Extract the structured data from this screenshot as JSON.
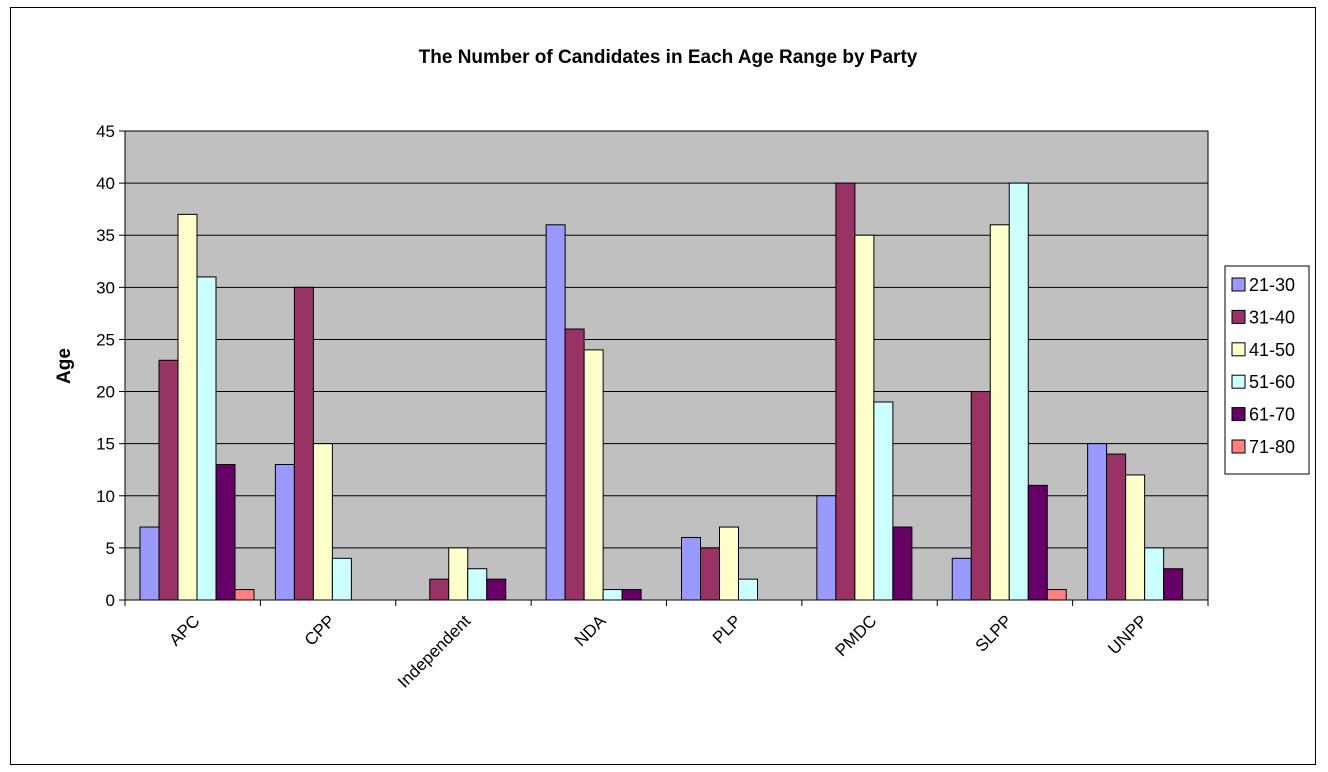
{
  "chart_data": {
    "type": "bar",
    "title": "The Number of Candidates in Each Age Range by Party",
    "xlabel": "",
    "ylabel": "Age",
    "ylim": [
      0,
      45
    ],
    "yticks": [
      0,
      5,
      10,
      15,
      20,
      25,
      30,
      35,
      40,
      45
    ],
    "grid": true,
    "legend_position": "right",
    "categories": [
      "APC",
      "CPP",
      "Independent",
      "NDA",
      "PLP",
      "PMDC",
      "SLPP",
      "UNPP"
    ],
    "series": [
      {
        "name": "21-30",
        "color": "#9999ff",
        "values": [
          7,
          13,
          0,
          36,
          6,
          10,
          4,
          15
        ]
      },
      {
        "name": "31-40",
        "color": "#993366",
        "values": [
          23,
          30,
          2,
          26,
          5,
          40,
          20,
          14
        ]
      },
      {
        "name": "41-50",
        "color": "#ffffcc",
        "values": [
          37,
          15,
          5,
          24,
          7,
          35,
          36,
          12
        ]
      },
      {
        "name": "51-60",
        "color": "#ccffff",
        "values": [
          31,
          4,
          3,
          1,
          2,
          19,
          40,
          5
        ]
      },
      {
        "name": "61-70",
        "color": "#660066",
        "values": [
          13,
          0,
          2,
          1,
          0,
          7,
          11,
          3
        ]
      },
      {
        "name": "71-80",
        "color": "#ff8080",
        "values": [
          1,
          0,
          0,
          0,
          0,
          0,
          1,
          0
        ]
      }
    ],
    "plot_background": "#c0c0c0"
  }
}
